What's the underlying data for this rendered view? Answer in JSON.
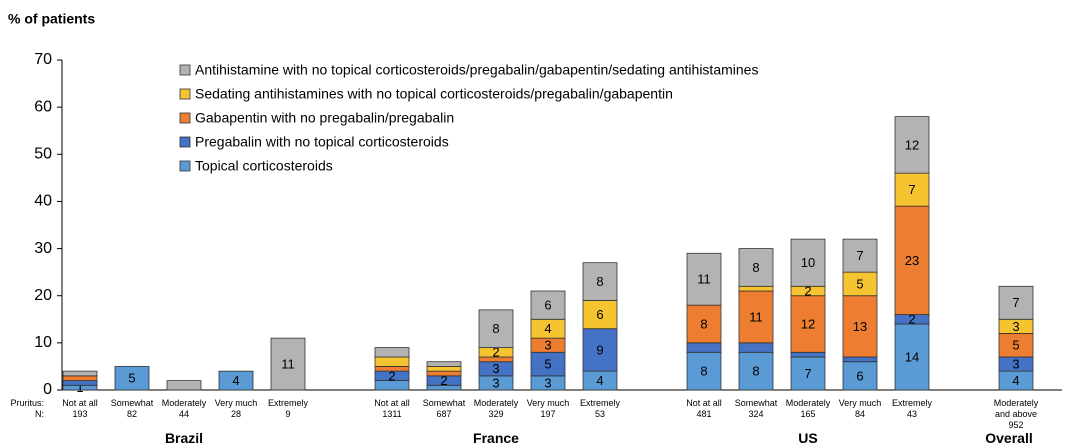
{
  "chart_data": {
    "type": "stacked_bar",
    "y_label": "% of patients",
    "row_labels": [
      "Pruritus:",
      "N:"
    ],
    "categories": [
      "Not at all",
      "Somewhat",
      "Moderately",
      "Very much",
      "Extremely",
      "Not at all",
      "Somewhat",
      "Moderately",
      "Very much",
      "Extremely",
      "Not at all",
      "Somewhat",
      "Moderately",
      "Very much",
      "Extremely",
      "Moderately and above"
    ],
    "n": [
      193,
      82,
      44,
      28,
      9,
      1311,
      687,
      329,
      197,
      53,
      481,
      324,
      165,
      84,
      43,
      952
    ],
    "category_groups": [
      "Brazil",
      "Brazil",
      "Brazil",
      "Brazil",
      "Brazil",
      "France",
      "France",
      "France",
      "France",
      "France",
      "US",
      "US",
      "US",
      "US",
      "US",
      "Overall"
    ],
    "ylim": [
      0,
      70
    ],
    "yticks": [
      0,
      10,
      20,
      30,
      40,
      50,
      60,
      70
    ],
    "grid": false,
    "legend": "top-left",
    "series": [
      {
        "name": "Topical corticosteroids",
        "color": "#5b9bd5",
        "values": [
          1,
          5,
          0,
          4,
          0,
          2,
          1,
          3,
          3,
          4,
          8,
          8,
          7,
          6,
          14,
          4
        ],
        "value_labels": [
          "1",
          "5",
          null,
          "4",
          null,
          null,
          null,
          "3",
          "3",
          "4",
          "8",
          "8",
          "7",
          "6",
          "14",
          "4"
        ]
      },
      {
        "name": "Pregabalin with no topical corticosteroids",
        "color": "#4472c4",
        "values": [
          1,
          0,
          0,
          0,
          0,
          2,
          2,
          3,
          5,
          9,
          2,
          2,
          1,
          1,
          2,
          3
        ],
        "value_labels": [
          null,
          null,
          null,
          null,
          null,
          "2",
          "2",
          "3",
          "5",
          "9",
          null,
          null,
          null,
          null,
          "2",
          "3"
        ]
      },
      {
        "name": "Gabapentin with no pregabalin/pregabalin",
        "color": "#ed7d31",
        "values": [
          1,
          0,
          0,
          0,
          0,
          1,
          1,
          1,
          3,
          0,
          8,
          11,
          12,
          13,
          23,
          5
        ],
        "value_labels": [
          null,
          null,
          null,
          null,
          null,
          null,
          null,
          null,
          "3",
          null,
          "8",
          "11",
          "12",
          "13",
          "23",
          "5"
        ]
      },
      {
        "name": "Sedating antihistamines with no topical corticosteroids/pregabalin/gabapentin",
        "color": "#f6c331",
        "values": [
          0,
          0,
          0,
          0,
          0,
          2,
          1,
          2,
          4,
          6,
          0,
          1,
          2,
          5,
          7,
          3
        ],
        "value_labels": [
          null,
          null,
          null,
          null,
          null,
          null,
          null,
          "2",
          "4",
          "6",
          null,
          null,
          "2",
          "5",
          "7",
          "3"
        ]
      },
      {
        "name": "Antihistamine with no topical corticosteroids/pregabalin/gabapentin/sedating antihistamines",
        "color": "#b3b3b3",
        "values": [
          1,
          0,
          2,
          0,
          11,
          2,
          1,
          8,
          6,
          8,
          11,
          8,
          10,
          7,
          12,
          7
        ],
        "value_labels": [
          null,
          null,
          null,
          null,
          "11",
          null,
          null,
          "8",
          "6",
          "8",
          "11",
          "8",
          "10",
          "7",
          "12",
          "7"
        ]
      }
    ]
  }
}
